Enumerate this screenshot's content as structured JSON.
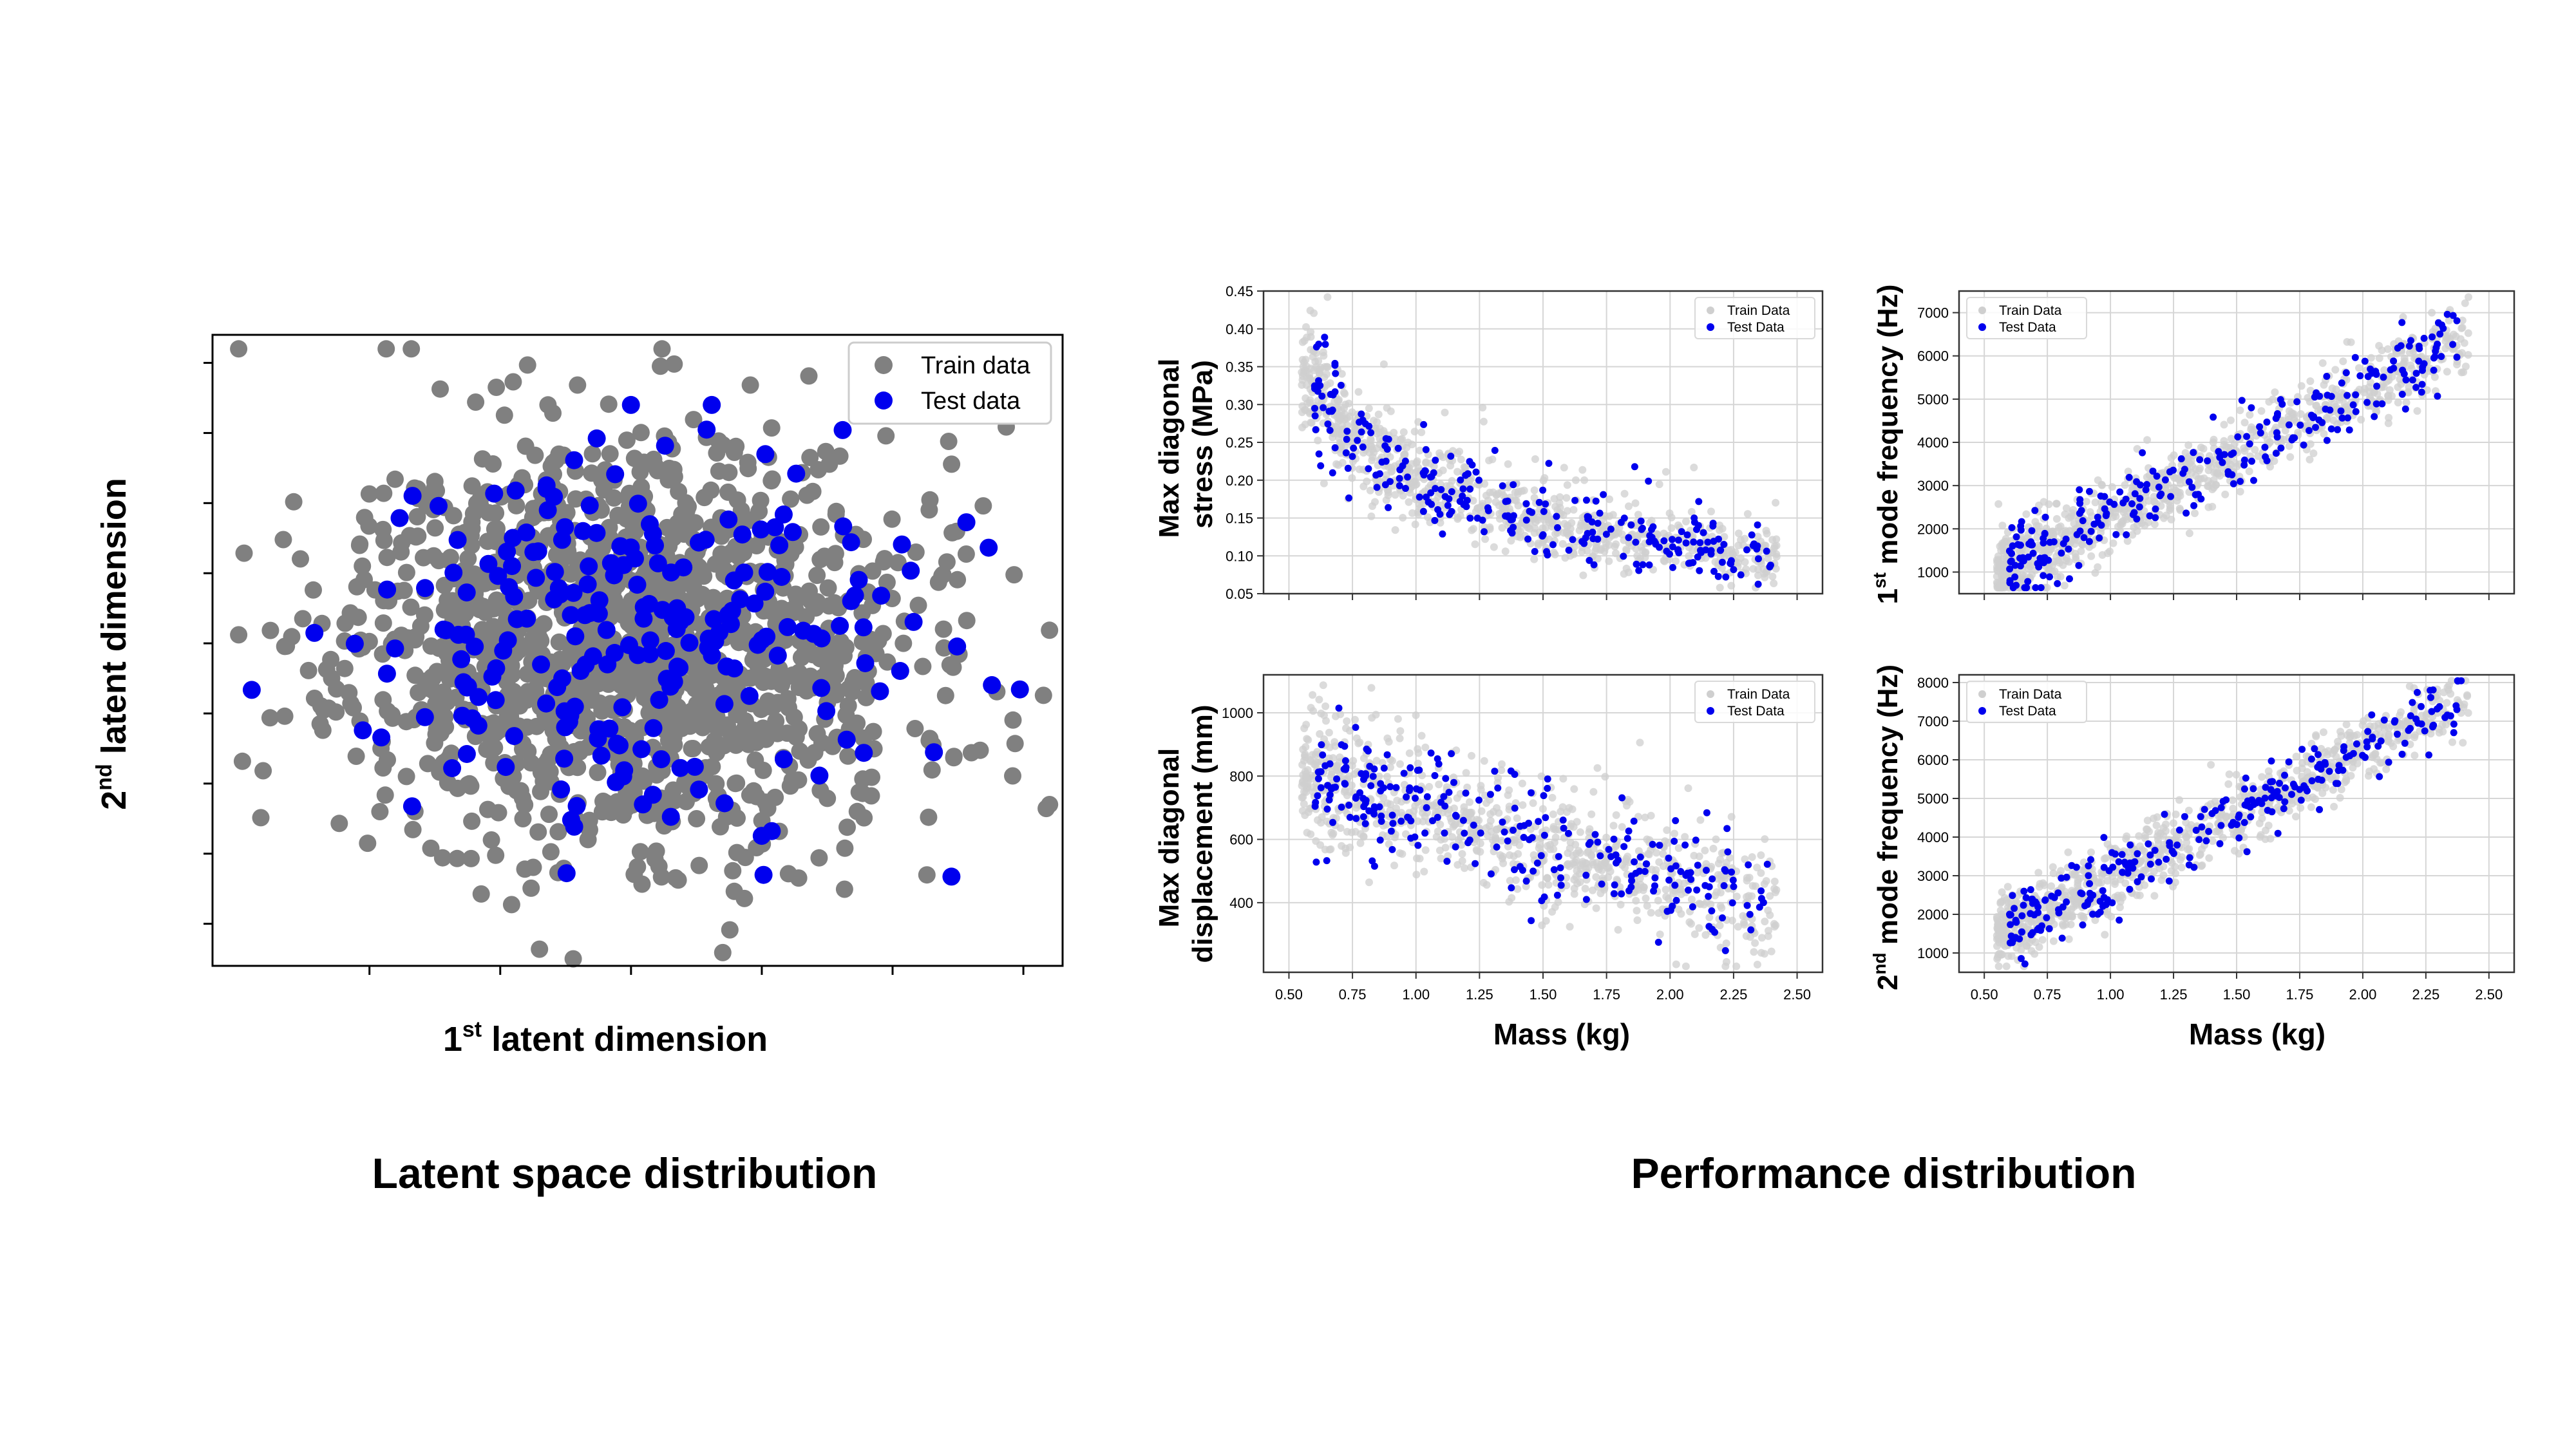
{
  "colors": {
    "train": "#808080",
    "train_light": "#cfcfcf",
    "test": "#0000ee",
    "axis": "#000000",
    "grid": "#d6d6d6"
  },
  "sections": {
    "left_title": "Latent space distribution",
    "right_title": "Performance distribution"
  },
  "chart_data": [
    {
      "id": "latent",
      "type": "scatter",
      "title": "",
      "xlabel_main": "1",
      "xlabel_sup": "st",
      "xlabel_rest": " latent dimension",
      "ylabel_main": "2",
      "ylabel_sup": "nd",
      "ylabel_rest": " latent dimension",
      "xlim": [
        -3.2,
        3.3
      ],
      "ylim": [
        -4.6,
        4.4
      ],
      "xticks": [
        -2,
        -1,
        0,
        1,
        2,
        3
      ],
      "yticks": [
        -4,
        -3,
        -2,
        -1,
        0,
        1,
        2,
        3,
        4
      ],
      "tick_labels_shown": false,
      "legend": [
        "Train data",
        "Test data"
      ],
      "legend_position": "top-right",
      "series": [
        {
          "name": "Train data",
          "generator": {
            "n": 1500,
            "cx": 0.0,
            "cy": 0.0,
            "sx": 1.05,
            "sy": 1.45,
            "seed": 11,
            "xrange": [
              -3.0,
              3.2
            ],
            "yrange": [
              -4.5,
              4.2
            ]
          }
        },
        {
          "name": "Test data",
          "generator": {
            "n": 230,
            "cx": -0.15,
            "cy": 0.2,
            "sx": 1.1,
            "sy": 1.35,
            "seed": 29,
            "xrange": [
              -2.9,
              3.2
            ],
            "yrange": [
              -4.1,
              3.4
            ]
          }
        }
      ]
    },
    {
      "id": "stress",
      "type": "scatter",
      "xlabel": "",
      "ylabel_lines": [
        "Max diagonal",
        "stress (MPa)"
      ],
      "xlim": [
        0.4,
        2.6
      ],
      "ylim": [
        0.05,
        0.45
      ],
      "xticks": [
        0.5,
        0.75,
        1.0,
        1.25,
        1.5,
        1.75,
        2.0,
        2.25,
        2.5
      ],
      "xtick_labels": [],
      "yticks": [
        0.05,
        0.1,
        0.15,
        0.2,
        0.25,
        0.3,
        0.35,
        0.4,
        0.45
      ],
      "ytick_labels": [
        "0.05",
        "0.10",
        "0.15",
        "0.20",
        "0.25",
        "0.30",
        "0.35",
        "0.40",
        "0.45"
      ],
      "legend": [
        "Train Data",
        "Test Data"
      ],
      "legend_position": "top-right",
      "relation": "stress"
    },
    {
      "id": "freq1",
      "type": "scatter",
      "xlabel": "",
      "ylabel_main": "1",
      "ylabel_sup": "st",
      "ylabel_rest": " mode frequency (Hz)",
      "xlim": [
        0.4,
        2.6
      ],
      "ylim": [
        500,
        7500
      ],
      "xticks": [
        0.5,
        0.75,
        1.0,
        1.25,
        1.5,
        1.75,
        2.0,
        2.25,
        2.5
      ],
      "xtick_labels": [],
      "yticks": [
        1000,
        2000,
        3000,
        4000,
        5000,
        6000,
        7000
      ],
      "ytick_labels": [
        "1000",
        "2000",
        "3000",
        "4000",
        "5000",
        "6000",
        "7000"
      ],
      "legend": [
        "Train Data",
        "Test Data"
      ],
      "legend_position": "top-left",
      "relation": "freq1"
    },
    {
      "id": "disp",
      "type": "scatter",
      "xlabel": "Mass (kg)",
      "ylabel_lines": [
        "Max diagonal",
        "displacement (mm)"
      ],
      "xlim": [
        0.4,
        2.6
      ],
      "ylim": [
        180,
        1120
      ],
      "xticks": [
        0.5,
        0.75,
        1.0,
        1.25,
        1.5,
        1.75,
        2.0,
        2.25,
        2.5
      ],
      "xtick_labels": [
        "0.50",
        "0.75",
        "1.00",
        "1.25",
        "1.50",
        "1.75",
        "2.00",
        "2.25",
        "2.50"
      ],
      "yticks": [
        400,
        600,
        800,
        1000
      ],
      "ytick_labels": [
        "400",
        "600",
        "800",
        "1000"
      ],
      "legend": [
        "Train Data",
        "Test Data"
      ],
      "legend_position": "top-right",
      "relation": "disp"
    },
    {
      "id": "freq2",
      "type": "scatter",
      "xlabel": "Mass (kg)",
      "ylabel_main": "2",
      "ylabel_sup": "nd",
      "ylabel_rest": " mode frequency (Hz)",
      "xlim": [
        0.4,
        2.6
      ],
      "ylim": [
        500,
        8200
      ],
      "xticks": [
        0.5,
        0.75,
        1.0,
        1.25,
        1.5,
        1.75,
        2.0,
        2.25,
        2.5
      ],
      "xtick_labels": [
        "0.50",
        "0.75",
        "1.00",
        "1.25",
        "1.50",
        "1.75",
        "2.00",
        "2.25",
        "2.50"
      ],
      "yticks": [
        1000,
        2000,
        3000,
        4000,
        5000,
        6000,
        7000,
        8000
      ],
      "ytick_labels": [
        "1000",
        "2000",
        "3000",
        "4000",
        "5000",
        "6000",
        "7000",
        "8000"
      ],
      "legend": [
        "Train Data",
        "Test Data"
      ],
      "legend_position": "top-left",
      "relation": "freq2"
    }
  ],
  "perf_series": {
    "train": {
      "n": 900,
      "seed": 7,
      "mass_range": [
        0.55,
        2.42
      ]
    },
    "test": {
      "n": 260,
      "seed": 41,
      "mass_range": [
        0.6,
        2.4
      ]
    }
  }
}
